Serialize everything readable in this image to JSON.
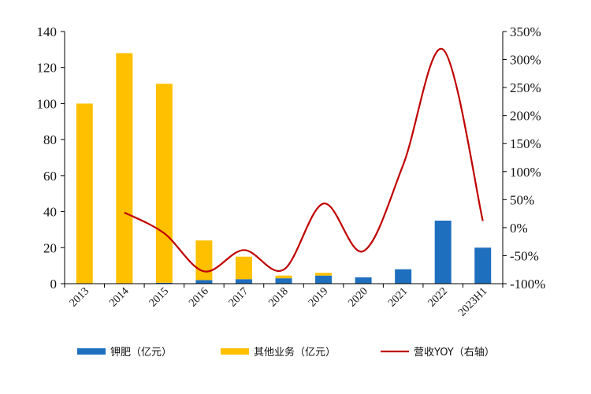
{
  "chart_data": {
    "type": "bar",
    "stacked": true,
    "categories": [
      "2013",
      "2014",
      "2015",
      "2016",
      "2017",
      "2018",
      "2019",
      "2020",
      "2021",
      "2022",
      "2023H1"
    ],
    "series": [
      {
        "name": "钾肥（亿元）",
        "type": "bar",
        "axis": "left",
        "color": "#1F6FBF",
        "values": [
          0,
          0,
          0.5,
          2,
          2.5,
          3,
          4.5,
          3.5,
          8,
          35,
          20
        ]
      },
      {
        "name": "其他业务（亿元）",
        "type": "bar",
        "axis": "left",
        "color": "#FFC000",
        "values": [
          100,
          128,
          110.5,
          22,
          12.5,
          1.5,
          1.5,
          0,
          0,
          0,
          0
        ]
      },
      {
        "name": "营收YOY（右轴）",
        "type": "line",
        "axis": "right",
        "color": "#C00000",
        "x": [
          "2014",
          "2015",
          "2016",
          "2017",
          "2018",
          "2019",
          "2020",
          "2021",
          "2022",
          "2023H1"
        ],
        "values": [
          27,
          -10,
          -78,
          -40,
          -75,
          43,
          -42,
          112,
          318,
          12
        ]
      }
    ],
    "ylim": [
      0,
      140
    ],
    "yticks": [
      "0",
      "20",
      "40",
      "60",
      "80",
      "100",
      "120",
      "140"
    ],
    "y2lim": [
      -100,
      350
    ],
    "y2ticks": [
      "-100%",
      "-50%",
      "0%",
      "50%",
      "100%",
      "150%",
      "200%",
      "250%",
      "300%",
      "350%"
    ],
    "legend_position": "bottom",
    "grid": false
  }
}
